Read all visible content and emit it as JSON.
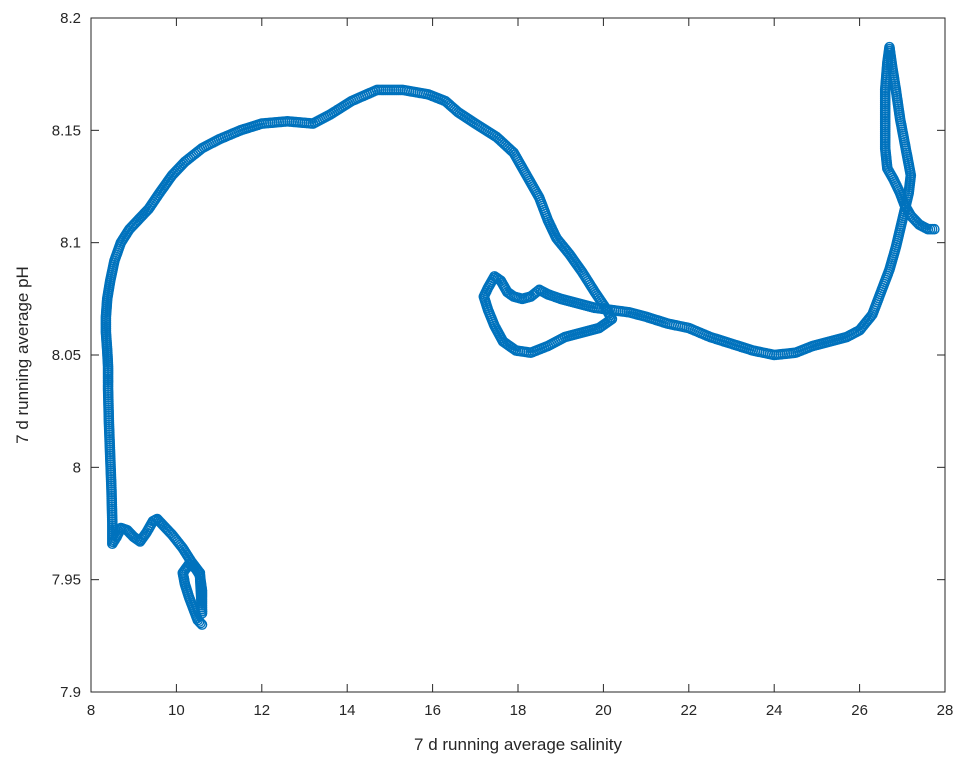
{
  "chart_data": {
    "type": "scatter",
    "xlabel": "7 d running average salinity",
    "ylabel": "7 d running average pH",
    "xlim": [
      8,
      28
    ],
    "ylim": [
      7.9,
      8.2
    ],
    "xticks": [
      8,
      10,
      12,
      14,
      16,
      18,
      20,
      22,
      24,
      26,
      28
    ],
    "yticks": [
      7.9,
      7.95,
      8,
      8.05,
      8.1,
      8.15,
      8.2
    ],
    "xtick_labels": [
      "8",
      "10",
      "12",
      "14",
      "16",
      "18",
      "20",
      "22",
      "24",
      "26",
      "28"
    ],
    "ytick_labels": [
      "7.9",
      "7.95",
      "8",
      "8.05",
      "8.1",
      "8.15",
      "8.2"
    ],
    "grid": false,
    "marker": "open-circle",
    "color": "#0072BD",
    "series": [
      {
        "points": [
          [
            10.6,
            7.93
          ],
          [
            10.5,
            7.932
          ],
          [
            10.4,
            7.937
          ],
          [
            10.3,
            7.942
          ],
          [
            10.2,
            7.948
          ],
          [
            10.15,
            7.953
          ],
          [
            10.3,
            7.957
          ],
          [
            10.45,
            7.955
          ],
          [
            10.55,
            7.952
          ],
          [
            10.6,
            7.945
          ],
          [
            10.6,
            7.935
          ],
          [
            10.55,
            7.953
          ],
          [
            10.35,
            7.958
          ],
          [
            10.15,
            7.964
          ],
          [
            9.9,
            7.97
          ],
          [
            9.7,
            7.974
          ],
          [
            9.55,
            7.977
          ],
          [
            9.45,
            7.976
          ],
          [
            9.3,
            7.971
          ],
          [
            9.15,
            7.967
          ],
          [
            9.0,
            7.969
          ],
          [
            8.85,
            7.972
          ],
          [
            8.7,
            7.973
          ],
          [
            8.6,
            7.969
          ],
          [
            8.5,
            7.966
          ],
          [
            8.5,
            7.975
          ],
          [
            8.48,
            7.99
          ],
          [
            8.45,
            8.005
          ],
          [
            8.42,
            8.02
          ],
          [
            8.4,
            8.035
          ],
          [
            8.4,
            8.045
          ],
          [
            8.38,
            8.052
          ],
          [
            8.35,
            8.06
          ],
          [
            8.35,
            8.067
          ],
          [
            8.38,
            8.075
          ],
          [
            8.45,
            8.083
          ],
          [
            8.55,
            8.092
          ],
          [
            8.7,
            8.1
          ],
          [
            8.9,
            8.106
          ],
          [
            9.1,
            8.11
          ],
          [
            9.35,
            8.115
          ],
          [
            9.6,
            8.122
          ],
          [
            9.9,
            8.13
          ],
          [
            10.2,
            8.136
          ],
          [
            10.6,
            8.142
          ],
          [
            11.0,
            8.146
          ],
          [
            11.5,
            8.15
          ],
          [
            12.0,
            8.153
          ],
          [
            12.6,
            8.154
          ],
          [
            13.2,
            8.153
          ],
          [
            13.6,
            8.157
          ],
          [
            14.1,
            8.163
          ],
          [
            14.7,
            8.168
          ],
          [
            15.3,
            8.168
          ],
          [
            15.9,
            8.166
          ],
          [
            16.3,
            8.163
          ],
          [
            16.6,
            8.158
          ],
          [
            17.0,
            8.153
          ],
          [
            17.5,
            8.147
          ],
          [
            17.9,
            8.14
          ],
          [
            18.2,
            8.13
          ],
          [
            18.5,
            8.12
          ],
          [
            18.7,
            8.11
          ],
          [
            18.9,
            8.102
          ],
          [
            19.2,
            8.095
          ],
          [
            19.5,
            8.087
          ],
          [
            19.8,
            8.078
          ],
          [
            20.05,
            8.071
          ],
          [
            20.2,
            8.066
          ],
          [
            19.9,
            8.062
          ],
          [
            19.5,
            8.06
          ],
          [
            19.1,
            8.058
          ],
          [
            18.7,
            8.054
          ],
          [
            18.3,
            8.051
          ],
          [
            17.95,
            8.052
          ],
          [
            17.65,
            8.056
          ],
          [
            17.45,
            8.063
          ],
          [
            17.3,
            8.07
          ],
          [
            17.2,
            8.076
          ],
          [
            17.3,
            8.08
          ],
          [
            17.45,
            8.085
          ],
          [
            17.6,
            8.083
          ],
          [
            17.75,
            8.078
          ],
          [
            17.9,
            8.076
          ],
          [
            18.1,
            8.075
          ],
          [
            18.3,
            8.076
          ],
          [
            18.5,
            8.079
          ],
          [
            18.7,
            8.077
          ],
          [
            19.0,
            8.075
          ],
          [
            19.4,
            8.073
          ],
          [
            19.8,
            8.071
          ],
          [
            20.2,
            8.07
          ],
          [
            20.6,
            8.069
          ],
          [
            21.0,
            8.067
          ],
          [
            21.5,
            8.064
          ],
          [
            22.0,
            8.062
          ],
          [
            22.5,
            8.058
          ],
          [
            23.0,
            8.055
          ],
          [
            23.5,
            8.052
          ],
          [
            24.0,
            8.05
          ],
          [
            24.5,
            8.051
          ],
          [
            24.9,
            8.054
          ],
          [
            25.3,
            8.056
          ],
          [
            25.7,
            8.058
          ],
          [
            26.0,
            8.061
          ],
          [
            26.3,
            8.068
          ],
          [
            26.5,
            8.078
          ],
          [
            26.7,
            8.088
          ],
          [
            26.85,
            8.098
          ],
          [
            27.0,
            8.11
          ],
          [
            27.15,
            8.122
          ],
          [
            27.2,
            8.13
          ],
          [
            27.1,
            8.14
          ],
          [
            26.95,
            8.155
          ],
          [
            26.85,
            8.168
          ],
          [
            26.75,
            8.18
          ],
          [
            26.7,
            8.187
          ],
          [
            26.65,
            8.18
          ],
          [
            26.6,
            8.168
          ],
          [
            26.6,
            8.155
          ],
          [
            26.6,
            8.142
          ],
          [
            26.65,
            8.133
          ],
          [
            26.8,
            8.128
          ],
          [
            26.95,
            8.122
          ],
          [
            27.05,
            8.117
          ],
          [
            27.2,
            8.112
          ],
          [
            27.4,
            8.108
          ],
          [
            27.6,
            8.106
          ],
          [
            27.75,
            8.106
          ]
        ]
      }
    ]
  }
}
